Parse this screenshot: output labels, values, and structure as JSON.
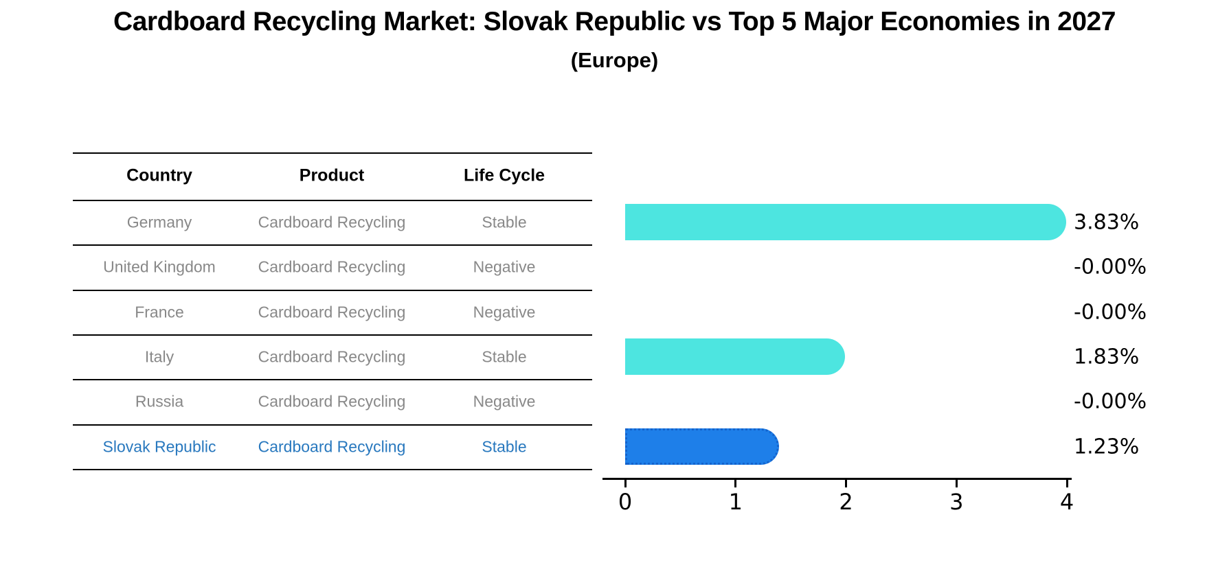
{
  "title": "Cardboard Recycling Market: Slovak Republic vs Top 5 Major Economies in 2027",
  "subtitle": "(Europe)",
  "table": {
    "headers": [
      "Country",
      "Product",
      "Life Cycle"
    ],
    "rows": [
      {
        "country": "Germany",
        "product": "Cardboard Recycling",
        "life_cycle": "Stable",
        "highlight": false
      },
      {
        "country": "United Kingdom",
        "product": "Cardboard Recycling",
        "life_cycle": "Negative",
        "highlight": false
      },
      {
        "country": "France",
        "product": "Cardboard Recycling",
        "life_cycle": "Negative",
        "highlight": false
      },
      {
        "country": "Italy",
        "product": "Cardboard Recycling",
        "life_cycle": "Stable",
        "highlight": false
      },
      {
        "country": "Russia",
        "product": "Cardboard Recycling",
        "life_cycle": "Negative",
        "highlight": false
      },
      {
        "country": "Slovak Republic",
        "product": "Cardboard Recycling",
        "life_cycle": "Stable",
        "highlight": true
      }
    ]
  },
  "chart_data": {
    "type": "bar",
    "orientation": "horizontal",
    "title": "Cardboard Recycling Market: Slovak Republic vs Top 5 Major Economies in 2027",
    "subtitle": "(Europe)",
    "categories": [
      "Germany",
      "United Kingdom",
      "France",
      "Italy",
      "Russia",
      "Slovak Republic"
    ],
    "values": [
      3.83,
      -0.0,
      -0.0,
      1.83,
      -0.0,
      1.23
    ],
    "value_labels": [
      "3.83%",
      "-0.00%",
      "-0.00%",
      "1.83%",
      "-0.00%",
      "1.23%"
    ],
    "xlabel": "",
    "ylabel": "",
    "xlim": [
      0,
      4
    ],
    "x_ticks": [
      "0",
      "1",
      "2",
      "3",
      "4"
    ],
    "grid": false,
    "legend": false,
    "highlight_index": 5
  },
  "colors": {
    "background": "#FFFFFF",
    "text": "#000000",
    "muted_text": "#888888",
    "highlight_text": "#2878BE",
    "bar_default": "#4DE5E0",
    "bar_highlight": "#1E7FE9",
    "bar_highlight_border": "#1463CC",
    "line": "#000000"
  }
}
